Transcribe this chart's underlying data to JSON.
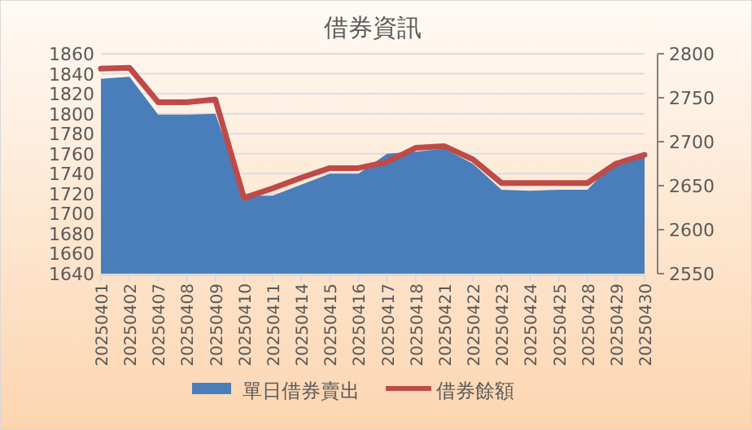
{
  "chart_data": {
    "type": "area",
    "title": "借券資訊",
    "categories": [
      "20250401",
      "20250402",
      "20250407",
      "20250408",
      "20250409",
      "20250410",
      "20250411",
      "20250414",
      "20250415",
      "20250416",
      "20250417",
      "20250418",
      "20250421",
      "20250422",
      "20250423",
      "20250424",
      "20250425",
      "20250428",
      "20250429",
      "20250430"
    ],
    "series": [
      {
        "name": "單日借券賣出",
        "type": "area",
        "color": "#4a7ebb",
        "values": [
          1835,
          1837,
          1799,
          1799,
          1800,
          1718,
          1718,
          1729,
          1740,
          1740,
          1760,
          1762,
          1765,
          1750,
          1724,
          1723,
          1724,
          1724,
          1753,
          1756
        ]
      },
      {
        "name": "借券餘額",
        "type": "line",
        "axis": "y2",
        "color": "#be4b48",
        "values": [
          2783,
          2784,
          2745,
          2745,
          2748,
          2636,
          2647,
          2659,
          2670,
          2670,
          2677,
          2693,
          2695,
          2680,
          2653,
          2653,
          2653,
          2653,
          2675,
          2685
        ]
      }
    ],
    "ylim": [
      1640,
      1860
    ],
    "yticks": [
      1640,
      1660,
      1680,
      1700,
      1720,
      1740,
      1760,
      1780,
      1800,
      1820,
      1840,
      1860
    ],
    "y2lim": [
      2550,
      2800
    ],
    "y2ticks": [
      2550,
      2600,
      2650,
      2700,
      2750,
      2800
    ],
    "grid": "y",
    "legend": "bottom"
  }
}
